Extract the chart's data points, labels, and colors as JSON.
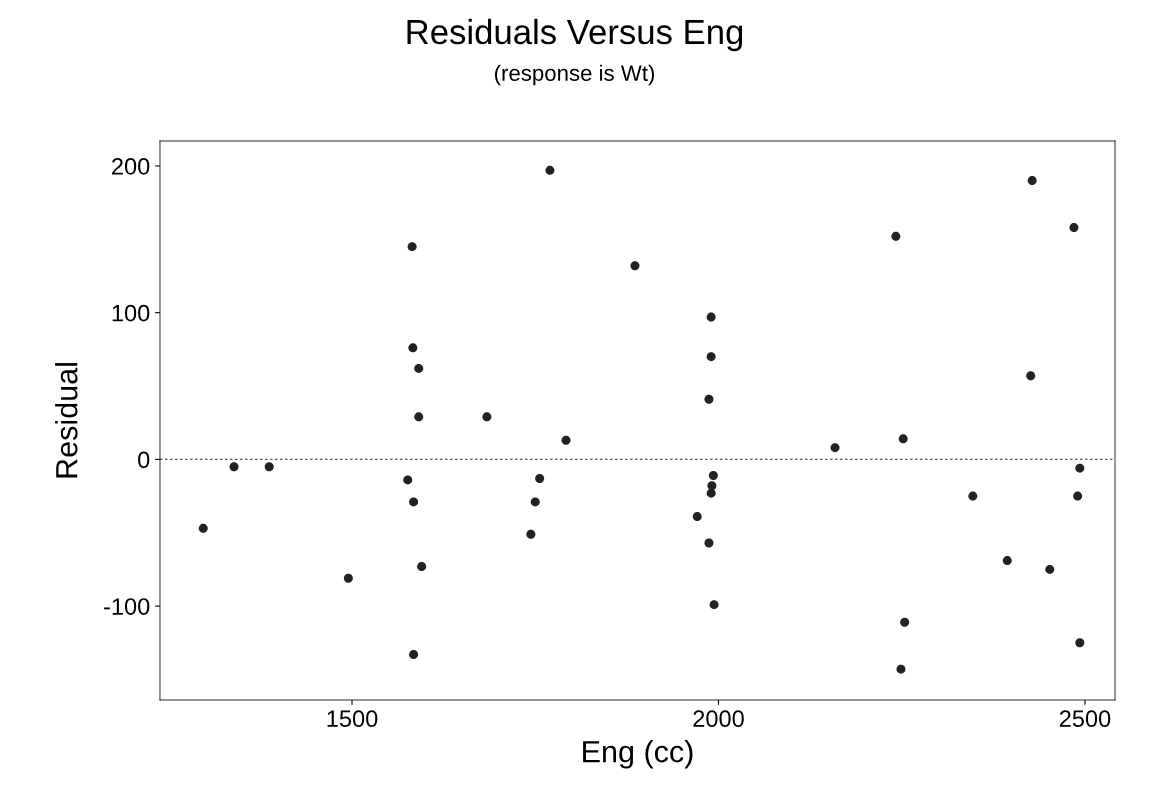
{
  "chart_data": {
    "type": "scatter",
    "title": "Residuals Versus Eng",
    "subtitle": "(response is Wt)",
    "xlabel": "Eng (cc)",
    "ylabel": "Residual",
    "x": [
      1297,
      1339,
      1387,
      1495,
      1582,
      1583,
      1591,
      1591,
      1576,
      1584,
      1595,
      1584,
      1684,
      1770,
      1792,
      1756,
      1750,
      1744,
      1886,
      1990,
      1990,
      1987,
      1993,
      1991,
      1990,
      1971,
      1987,
      1994,
      2159,
      2242,
      2252,
      2254,
      2249,
      2347,
      2394,
      2428,
      2426,
      2452,
      2485,
      2493,
      2490,
      2493
    ],
    "series": [
      {
        "color": "#222222",
        "values": [
          -47,
          -5,
          -5,
          -81,
          145,
          76,
          62,
          29,
          -14,
          -29,
          -73,
          -133,
          29,
          197,
          13,
          -13,
          -29,
          -51,
          132,
          97,
          70,
          41,
          -11,
          -18,
          -23,
          -39,
          -57,
          -99,
          8,
          152,
          14,
          -111,
          -143,
          -25,
          -69,
          190,
          57,
          -75,
          158,
          -6,
          -25,
          -125
        ]
      }
    ],
    "xlim": [
      1238,
      2541
    ],
    "ylim": [
      -164,
      217
    ],
    "xticks": [
      1500,
      2000,
      2500
    ],
    "yticks": [
      -100,
      0,
      100,
      200
    ],
    "ref_lines": [
      {
        "axis": "y",
        "value": 0,
        "color": "#555555",
        "line_style": "dotted"
      }
    ],
    "marker": "circle",
    "grid": false,
    "legend": false
  }
}
